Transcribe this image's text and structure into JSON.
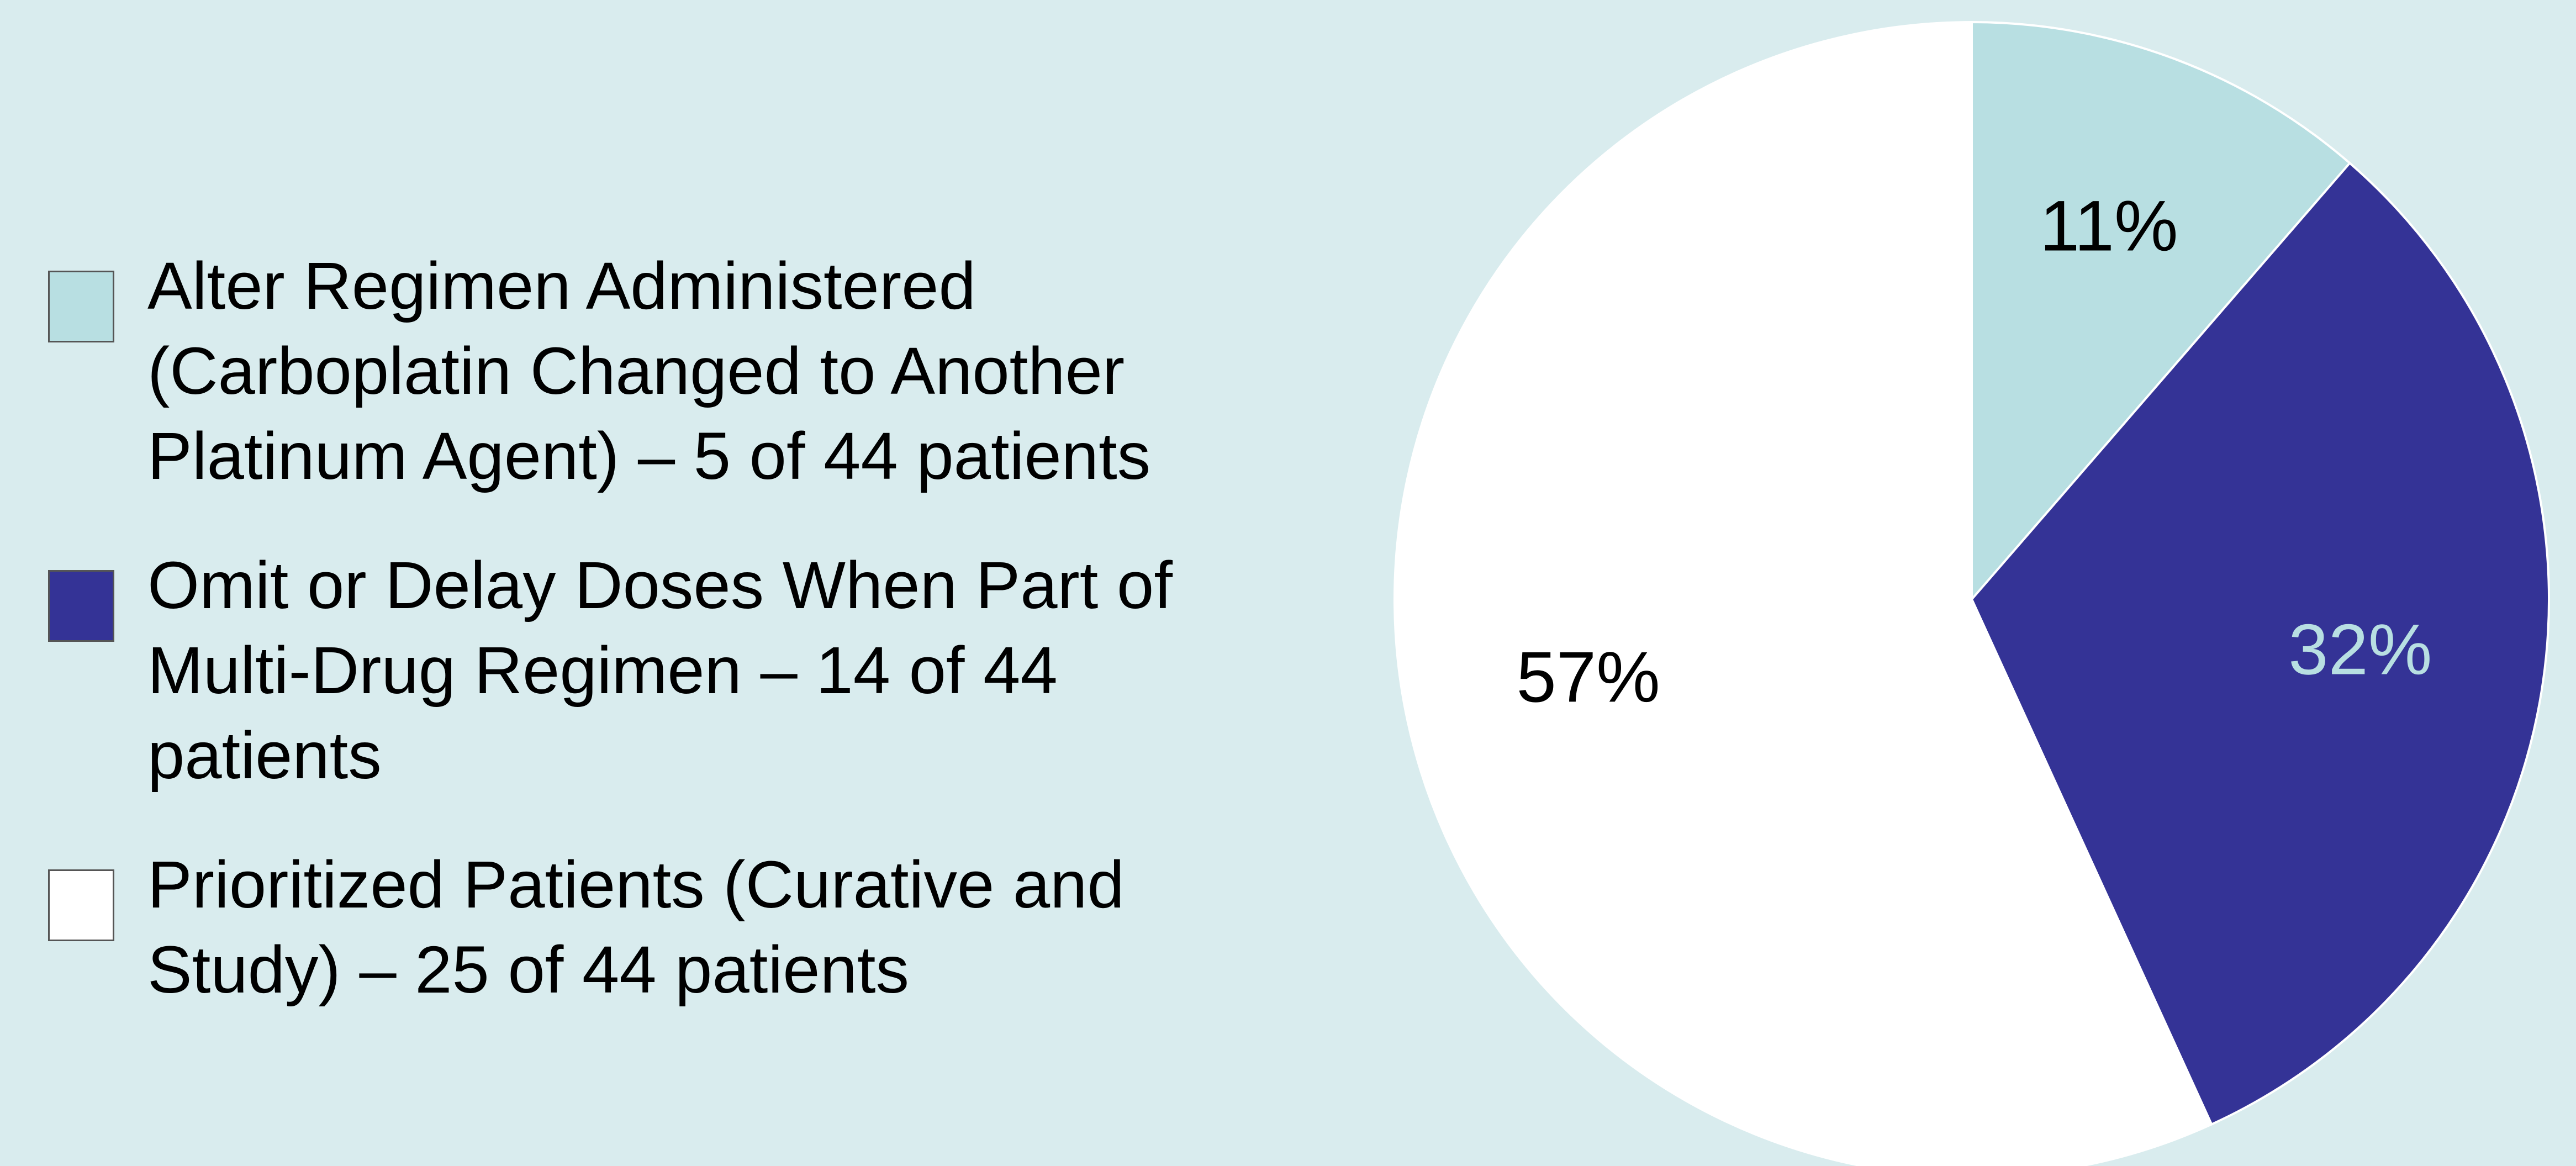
{
  "chart_data": {
    "type": "pie",
    "slices": [
      {
        "label": "Alter Regimen Administered (Carboplatin Changed to Another Platinum Agent) – 5 of 44 patients",
        "value": 5,
        "percent_label": "11%",
        "color": "#b8dfe2",
        "label_color": "#000000"
      },
      {
        "label": "Omit or Delay Doses When Part of Multi-Drug Regimen – 14 of 44 patients",
        "value": 14,
        "percent_label": "32%",
        "color": "#343396",
        "label_color": "#b8dfe2"
      },
      {
        "label": "Prioritized Patients (Curative and Study) – 25 of 44 patients",
        "value": 25,
        "percent_label": "57%",
        "color": "#ffffff",
        "label_color": "#000000"
      }
    ],
    "legend_position": "left"
  }
}
